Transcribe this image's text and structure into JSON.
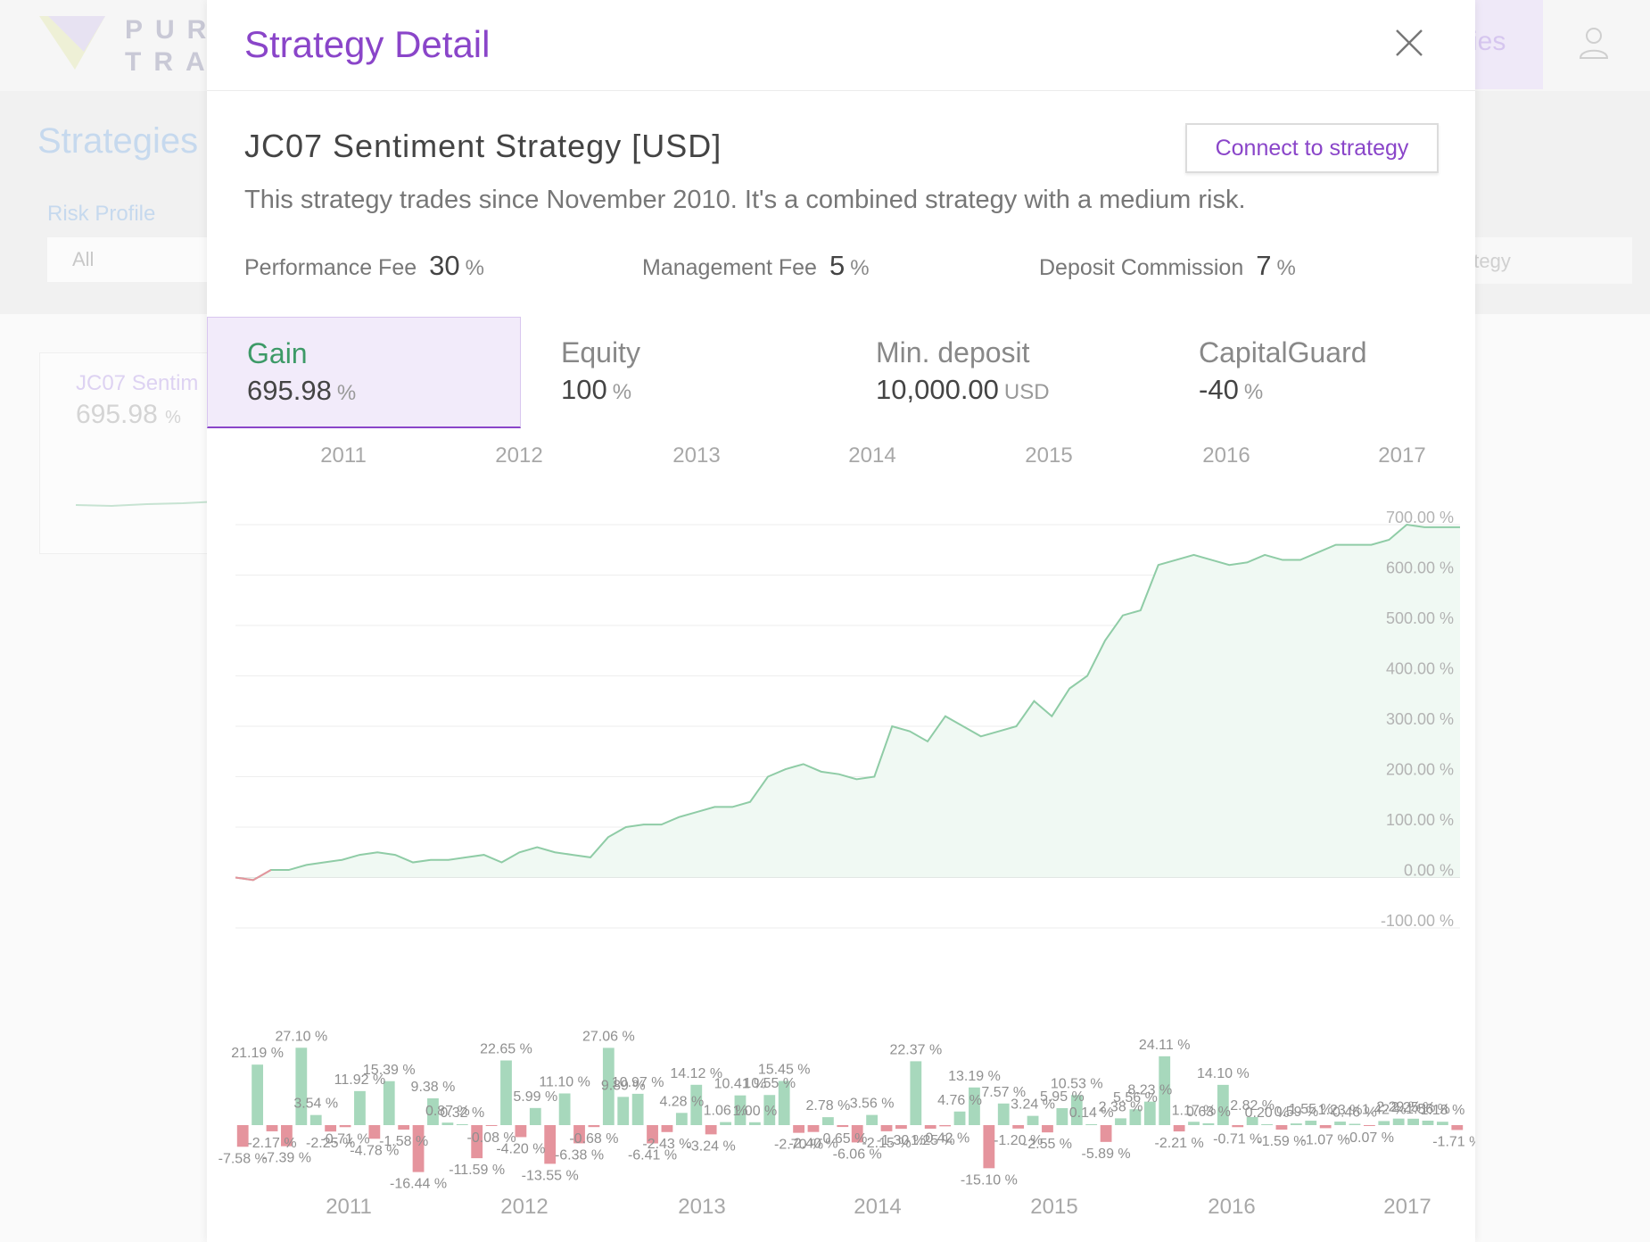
{
  "background": {
    "brand_top": "PUR",
    "brand_bottom": "TRA",
    "nav_fragment": "ies",
    "page_title": "Strategies",
    "risk_label": "Risk Profile",
    "risk_value": "All",
    "search_fragment": "ategy",
    "card_name": "JC07 Sentim",
    "card_gain": "695.98",
    "card_unit": "%"
  },
  "modal": {
    "title": "Strategy Detail",
    "strategy_name": "JC07 Sentiment Strategy [USD]",
    "connect_label": "Connect to strategy",
    "description": "This strategy trades since November 2010. It's a combined strategy with a medium risk.",
    "fees": [
      {
        "label": "Performance Fee",
        "value": "30",
        "unit": "%"
      },
      {
        "label": "Management Fee",
        "value": "5",
        "unit": "%"
      },
      {
        "label": "Deposit Commission",
        "value": "7",
        "unit": "%"
      }
    ],
    "stats": [
      {
        "label": "Gain",
        "value": "695.98",
        "unit": "%"
      },
      {
        "label": "Equity",
        "value": "100",
        "unit": "%"
      },
      {
        "label": "Min. deposit",
        "value": "10,000.00",
        "unit": "USD"
      },
      {
        "label": "CapitalGuard",
        "value": "-40",
        "unit": "%"
      }
    ]
  },
  "colors": {
    "accent": "#8a45c9",
    "positive": "#a7d8bc",
    "negative": "#e5949d",
    "line": "#8fcca6",
    "area": "#f0f9f3"
  },
  "chart_data": [
    {
      "type": "area",
      "title": "",
      "x_ticks": [
        "2011",
        "2012",
        "2013",
        "2014",
        "2015",
        "2016",
        "2017"
      ],
      "y_ticks": [
        "-100.00 %",
        "0.00 %",
        "100.00 %",
        "200.00 %",
        "300.00 %",
        "400.00 %",
        "500.00 %",
        "600.00 %",
        "700.00 %"
      ],
      "ylim": [
        -100,
        700
      ],
      "x_range": [
        2010.85,
        2017.75
      ],
      "grid": true,
      "series": [
        {
          "x": [
            2010.85,
            2010.95,
            2011.05,
            2011.15,
            2011.25,
            2011.35,
            2011.45,
            2011.55,
            2011.65,
            2011.75,
            2011.85,
            2011.95,
            2012.05,
            2012.15,
            2012.25,
            2012.35,
            2012.45,
            2012.55,
            2012.65,
            2012.75,
            2012.85,
            2012.95,
            2013.05,
            2013.15,
            2013.25,
            2013.35,
            2013.45,
            2013.55,
            2013.65,
            2013.75,
            2013.85,
            2013.95,
            2014.05,
            2014.15,
            2014.25,
            2014.35,
            2014.45,
            2014.55,
            2014.65,
            2014.75,
            2014.85,
            2014.95,
            2015.05,
            2015.15,
            2015.25,
            2015.35,
            2015.45,
            2015.55,
            2015.65,
            2015.75,
            2015.85,
            2015.95,
            2016.05,
            2016.15,
            2016.25,
            2016.35,
            2016.45,
            2016.55,
            2016.65,
            2016.75,
            2016.85,
            2016.95,
            2017.05,
            2017.15,
            2017.25,
            2017.35,
            2017.45,
            2017.55,
            2017.65,
            2017.75
          ],
          "y": [
            0,
            -5,
            15,
            15,
            25,
            30,
            35,
            45,
            50,
            45,
            30,
            35,
            35,
            40,
            45,
            30,
            50,
            60,
            50,
            45,
            40,
            80,
            100,
            105,
            105,
            120,
            130,
            140,
            140,
            150,
            200,
            215,
            225,
            210,
            205,
            195,
            200,
            300,
            290,
            270,
            320,
            300,
            280,
            290,
            300,
            350,
            320,
            375,
            400,
            470,
            520,
            530,
            620,
            630,
            640,
            630,
            620,
            625,
            640,
            630,
            630,
            645,
            660,
            660,
            660,
            670,
            700,
            695,
            695,
            695
          ]
        }
      ]
    },
    {
      "type": "bar",
      "title": "",
      "x_ticks": [
        "2011",
        "2012",
        "2013",
        "2014",
        "2015",
        "2016",
        "2017"
      ],
      "values": [
        -7.58,
        21.19,
        -2.17,
        -7.39,
        27.1,
        3.54,
        -2.25,
        -0.71,
        11.92,
        -4.78,
        15.39,
        -1.58,
        -16.44,
        9.38,
        0.87,
        0.32,
        -11.59,
        -0.08,
        22.65,
        -4.2,
        5.99,
        -13.55,
        11.1,
        -6.38,
        -0.68,
        27.06,
        9.89,
        10.97,
        -6.41,
        -2.43,
        4.28,
        14.12,
        -3.24,
        1.06,
        10.41,
        1.0,
        10.55,
        15.45,
        -2.7,
        -2.4,
        2.78,
        -0.65,
        -6.06,
        3.56,
        -2.15,
        -1.3,
        22.37,
        -1.25,
        -0.42,
        4.76,
        13.19,
        -15.1,
        7.57,
        -1.2,
        3.24,
        -2.55,
        5.95,
        10.53,
        0.14,
        -5.89,
        2.38,
        5.56,
        8.23,
        24.11,
        -2.21,
        1.17,
        0.63,
        14.1,
        -0.71,
        2.82,
        0.2,
        -1.59,
        0.59,
        1.55,
        -1.07,
        1.23,
        0.46,
        -0.07,
        1.42,
        2.29,
        2.25,
        1.56,
        1.18,
        -1.71
      ],
      "data_labels": [
        "-7.58 %",
        "21.19 %",
        "-2.17 %",
        "-7.39 %",
        "27.10 %",
        "3.54 %",
        "-2.25 %",
        "-0.71 %",
        "11.92 %",
        "-4.78 %",
        "15.39 %",
        "-1.58 %",
        "-16.44 %",
        "9.38 %",
        "0.87 %",
        "0.32 %",
        "-11.59 %",
        "-0.08 %",
        "22.65 %",
        "-4.20 %",
        "5.99 %",
        "-13.55 %",
        "11.10 %",
        "-6.38 %",
        "-0.68 %",
        "27.06 %",
        "9.89 %",
        "10.97 %",
        "-6.41 %",
        "-2.43 %",
        "4.28 %",
        "14.12 %",
        "-3.24 %",
        "1.06 %",
        "10.41 %",
        "1.00 %",
        "10.55 %",
        "15.45 %",
        "-2.70 %",
        "-2.40 %",
        "2.78 %",
        "-0.65 %",
        "-6.06 %",
        "3.56 %",
        "-2.15 %",
        "-1.30 %",
        "22.37 %",
        "-1.25 %",
        "-0.42 %",
        "4.76 %",
        "13.19 %",
        "-15.10 %",
        "7.57 %",
        "-1.20 %",
        "3.24 %",
        "-2.55 %",
        "5.95 %",
        "10.53 %",
        "0.14 %",
        "-5.89 %",
        "2.38 %",
        "5.56 %",
        "8.23 %",
        "24.11 %",
        "-2.21 %",
        "1.17 %",
        "0.63 %",
        "14.10 %",
        "-0.71 %",
        "2.82 %",
        "0.20 %",
        "-1.59 %",
        "0.59 %",
        "1.55 %",
        "-1.07 %",
        "1.23 %",
        "0.46 %",
        "-0.07 %",
        "1.42 %",
        "2.29 %",
        "2.25 %",
        "1.56 %",
        "1.18 %",
        "-1.71 %"
      ]
    }
  ]
}
